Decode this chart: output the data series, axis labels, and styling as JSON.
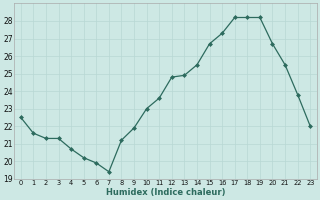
{
  "x": [
    0,
    1,
    2,
    3,
    4,
    5,
    6,
    7,
    8,
    9,
    10,
    11,
    12,
    13,
    14,
    15,
    16,
    17,
    18,
    19,
    20,
    21,
    22,
    23
  ],
  "y": [
    22.5,
    21.6,
    21.3,
    21.3,
    20.7,
    20.2,
    19.9,
    19.4,
    21.2,
    21.9,
    23.0,
    23.6,
    24.8,
    24.9,
    25.5,
    26.7,
    27.3,
    28.2,
    28.2,
    28.2,
    26.7,
    25.5,
    23.8,
    22.0
  ],
  "xlabel": "Humidex (Indice chaleur)",
  "ylim": [
    19,
    29
  ],
  "yticks": [
    19,
    20,
    21,
    22,
    23,
    24,
    25,
    26,
    27,
    28
  ],
  "xticks": [
    0,
    1,
    2,
    3,
    4,
    5,
    6,
    7,
    8,
    9,
    10,
    11,
    12,
    13,
    14,
    15,
    16,
    17,
    18,
    19,
    20,
    21,
    22,
    23
  ],
  "line_color": "#2d6b5e",
  "marker": "D",
  "marker_size": 2.0,
  "bg_color": "#cde8e4",
  "grid_color": "#b8d8d4",
  "spine_color": "#aaaaaa",
  "xlim": [
    -0.5,
    23.5
  ]
}
